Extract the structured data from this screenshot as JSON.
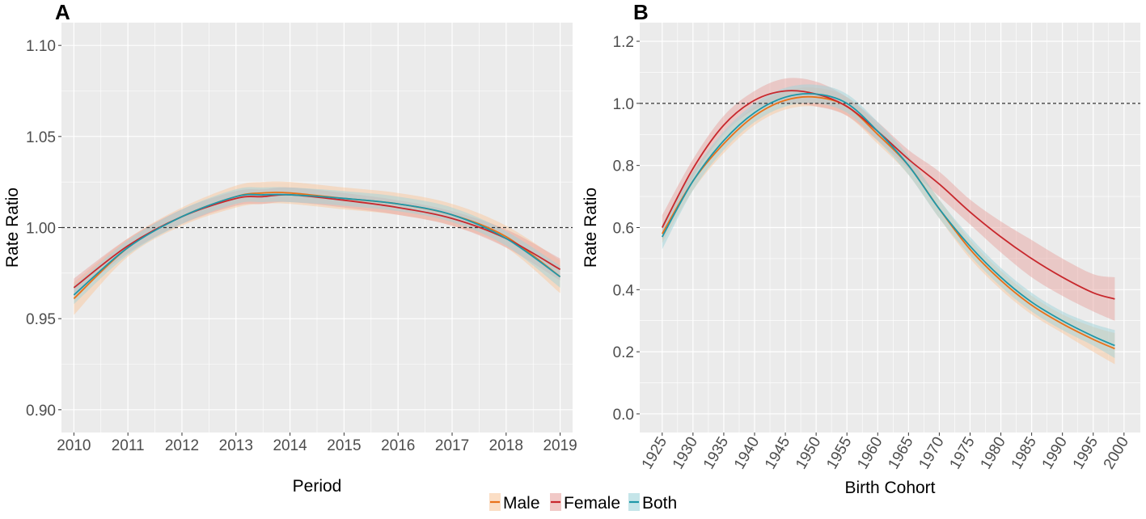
{
  "chart_data": [
    {
      "panel": "A",
      "type": "line",
      "xlabel": "Period",
      "ylabel": "Rate Ratio",
      "xlim": [
        2009.77,
        2019.23
      ],
      "ylim": [
        0.8875,
        1.1125
      ],
      "x_ticks": [
        2010,
        2011,
        2012,
        2013,
        2014,
        2015,
        2016,
        2017,
        2018,
        2019
      ],
      "y_ticks": [
        0.9,
        0.95,
        1.0,
        1.05,
        1.1
      ],
      "y_tick_labels": [
        "0.90",
        "0.95",
        "1.00",
        "1.05",
        "1.10"
      ],
      "reference_line": 1.0,
      "grid": true,
      "series": [
        {
          "name": "Male",
          "color": "#E8711A",
          "band_color": "#F9C89E",
          "x": [
            2010,
            2011,
            2012,
            2013,
            2013.5,
            2014,
            2015,
            2016,
            2017,
            2018,
            2019
          ],
          "values": [
            0.961,
            0.989,
            1.006,
            1.017,
            1.019,
            1.019,
            1.016,
            1.013,
            1.007,
            0.995,
            0.973
          ],
          "lower": [
            0.952,
            0.984,
            1.001,
            1.011,
            1.013,
            1.013,
            1.01,
            1.007,
            1.001,
            0.989,
            0.964
          ],
          "upper": [
            0.97,
            0.994,
            1.011,
            1.023,
            1.025,
            1.025,
            1.022,
            1.019,
            1.013,
            1.001,
            0.982
          ]
        },
        {
          "name": "Female",
          "color": "#C8282D",
          "band_color": "#E8A5A2",
          "x": [
            2010,
            2011,
            2012,
            2013,
            2013.5,
            2014,
            2015,
            2016,
            2017,
            2018,
            2019
          ],
          "values": [
            0.967,
            0.99,
            1.006,
            1.016,
            1.017,
            1.018,
            1.015,
            1.011,
            1.005,
            0.994,
            0.977
          ],
          "lower": [
            0.962,
            0.986,
            1.002,
            1.012,
            1.013,
            1.014,
            1.011,
            1.007,
            1.001,
            0.989,
            0.971
          ],
          "upper": [
            0.972,
            0.994,
            1.01,
            1.02,
            1.021,
            1.022,
            1.019,
            1.015,
            1.009,
            0.999,
            0.983
          ]
        },
        {
          "name": "Both",
          "color": "#1E97A8",
          "band_color": "#9FD3DA",
          "x": [
            2010,
            2011,
            2012,
            2013,
            2013.5,
            2014,
            2015,
            2016,
            2017,
            2018,
            2019
          ],
          "values": [
            0.963,
            0.989,
            1.006,
            1.017,
            1.018,
            1.018,
            1.016,
            1.013,
            1.007,
            0.994,
            0.973
          ],
          "lower": [
            0.958,
            0.985,
            1.002,
            1.013,
            1.014,
            1.014,
            1.012,
            1.009,
            1.003,
            0.99,
            0.967
          ],
          "upper": [
            0.968,
            0.993,
            1.01,
            1.021,
            1.022,
            1.022,
            1.02,
            1.017,
            1.011,
            0.998,
            0.979
          ]
        }
      ]
    },
    {
      "panel": "B",
      "type": "line",
      "xlabel": "Birth Cohort",
      "ylabel": "Rate Ratio",
      "xlim": [
        1921.35,
        2002.65
      ],
      "ylim": [
        -0.06,
        1.26
      ],
      "x_ticks": [
        1925,
        1930,
        1935,
        1940,
        1945,
        1950,
        1955,
        1960,
        1965,
        1970,
        1975,
        1980,
        1985,
        1990,
        1995,
        2000
      ],
      "y_ticks": [
        0.0,
        0.2,
        0.4,
        0.6,
        0.8,
        1.0,
        1.2
      ],
      "y_tick_labels": [
        "0.0",
        "0.2",
        "0.4",
        "0.6",
        "0.8",
        "1.0",
        "1.2"
      ],
      "reference_line": 1.0,
      "grid": true,
      "series": [
        {
          "name": "Male",
          "color": "#E8711A",
          "band_color": "#F9C89E",
          "x": [
            1925,
            1930,
            1935,
            1940,
            1945,
            1950,
            1955,
            1960,
            1965,
            1970,
            1975,
            1980,
            1985,
            1990,
            1995,
            1998.5
          ],
          "values": [
            0.58,
            0.75,
            0.87,
            0.96,
            1.01,
            1.02,
            0.99,
            0.9,
            0.8,
            0.66,
            0.53,
            0.43,
            0.35,
            0.29,
            0.24,
            0.21
          ],
          "lower": [
            0.55,
            0.72,
            0.84,
            0.93,
            0.98,
            0.99,
            0.96,
            0.87,
            0.77,
            0.63,
            0.5,
            0.4,
            0.32,
            0.26,
            0.2,
            0.16
          ],
          "upper": [
            0.61,
            0.78,
            0.9,
            0.99,
            1.04,
            1.05,
            1.02,
            0.93,
            0.83,
            0.69,
            0.56,
            0.46,
            0.38,
            0.32,
            0.28,
            0.26
          ]
        },
        {
          "name": "Female",
          "color": "#C8282D",
          "band_color": "#E8A5A2",
          "x": [
            1925,
            1930,
            1935,
            1940,
            1945,
            1950,
            1955,
            1960,
            1965,
            1970,
            1975,
            1980,
            1985,
            1990,
            1995,
            1998.5
          ],
          "values": [
            0.6,
            0.79,
            0.93,
            1.01,
            1.04,
            1.03,
            0.99,
            0.91,
            0.82,
            0.74,
            0.65,
            0.57,
            0.5,
            0.44,
            0.39,
            0.37
          ],
          "lower": [
            0.56,
            0.76,
            0.9,
            0.98,
            1.0,
            0.99,
            0.96,
            0.88,
            0.79,
            0.7,
            0.61,
            0.52,
            0.44,
            0.38,
            0.33,
            0.3
          ],
          "upper": [
            0.64,
            0.82,
            0.96,
            1.04,
            1.08,
            1.07,
            1.02,
            0.94,
            0.85,
            0.78,
            0.69,
            0.62,
            0.56,
            0.5,
            0.45,
            0.44
          ]
        },
        {
          "name": "Both",
          "color": "#1E97A8",
          "band_color": "#9FD3DA",
          "x": [
            1925,
            1930,
            1935,
            1940,
            1945,
            1950,
            1955,
            1960,
            1965,
            1970,
            1975,
            1980,
            1985,
            1990,
            1995,
            1998.5
          ],
          "values": [
            0.57,
            0.75,
            0.88,
            0.97,
            1.02,
            1.03,
            1.0,
            0.91,
            0.8,
            0.66,
            0.54,
            0.44,
            0.36,
            0.3,
            0.25,
            0.22
          ],
          "lower": [
            0.53,
            0.72,
            0.85,
            0.94,
            0.99,
            1.0,
            0.97,
            0.88,
            0.77,
            0.63,
            0.51,
            0.41,
            0.33,
            0.27,
            0.22,
            0.18
          ],
          "upper": [
            0.61,
            0.78,
            0.91,
            1.0,
            1.05,
            1.06,
            1.03,
            0.94,
            0.83,
            0.69,
            0.57,
            0.47,
            0.39,
            0.33,
            0.29,
            0.27
          ]
        }
      ]
    }
  ],
  "panel_labels": [
    "A",
    "B"
  ],
  "legend": [
    {
      "label": "Male",
      "color": "#E8711A",
      "band_color": "#F9C89E"
    },
    {
      "label": "Female",
      "color": "#C8282D",
      "band_color": "#E8A5A2"
    },
    {
      "label": "Both",
      "color": "#1E97A8",
      "band_color": "#9FD3DA"
    }
  ],
  "colors": {
    "panel_bg": "#EBEBEB",
    "grid": "#FFFFFF",
    "reference_line": "#333333"
  }
}
